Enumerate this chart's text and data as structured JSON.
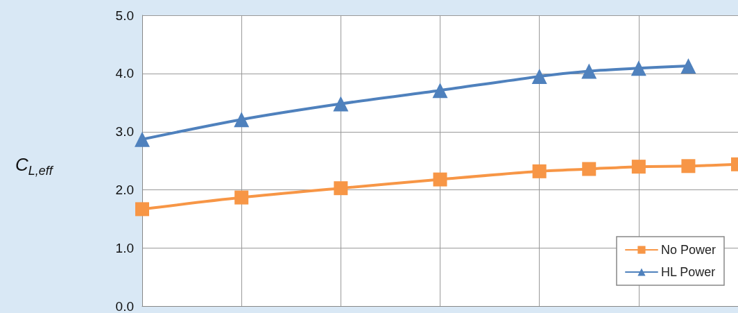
{
  "chart_data": {
    "type": "line",
    "ylabel": "C$_{L,eff}$",
    "categories": [
      null,
      null,
      null,
      null,
      null,
      null,
      null,
      null,
      null,
      null,
      null,
      null,
      null
    ],
    "series": [
      {
        "name": "No Power",
        "color": "#f79646",
        "marker": "square",
        "values": [
          1.67,
          null,
          1.87,
          null,
          2.03,
          null,
          2.18,
          null,
          2.32,
          2.36,
          2.4,
          2.41,
          2.44
        ]
      },
      {
        "name": "HL Power",
        "color": "#4f81bd",
        "marker": "triangle",
        "values": [
          2.87,
          null,
          3.21,
          null,
          3.48,
          null,
          3.71,
          null,
          3.95,
          4.04,
          4.09,
          4.13,
          null
        ]
      }
    ],
    "ylim": [
      0,
      5
    ],
    "yticks": [
      {
        "value": 0,
        "label": "0.0"
      },
      {
        "value": 1,
        "label": "1.0"
      },
      {
        "value": 2,
        "label": "2.0"
      },
      {
        "value": 3,
        "label": "3.0"
      },
      {
        "value": 4,
        "label": "4.0"
      },
      {
        "value": 5,
        "label": "5.0"
      }
    ],
    "grid": true,
    "legend": "bottom right",
    "tick_labels": "y",
    "line_style": "solid"
  }
}
